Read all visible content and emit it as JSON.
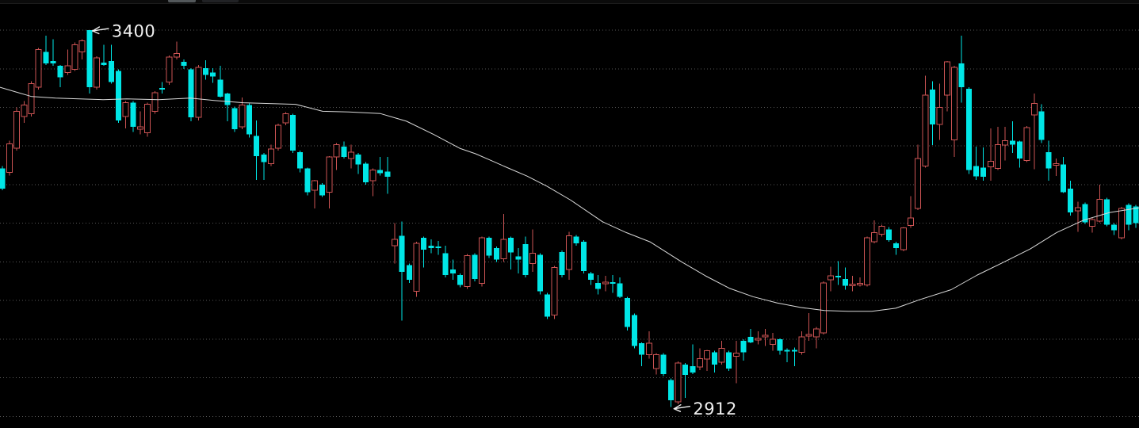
{
  "window": {
    "background": "#000000",
    "top_strip": {
      "background": "#0b0b0b",
      "border_color": "#1c1c1c",
      "fragments": [
        {
          "name": "window-fragment-1",
          "x": 212,
          "width": 35,
          "color": "#53585b"
        },
        {
          "name": "window-fragment-2",
          "x": 255,
          "width": 46,
          "color": "#212225"
        }
      ]
    }
  },
  "chart_data": {
    "type": "candlestick",
    "title": "",
    "xlabel": "",
    "ylabel": "",
    "legend": "none",
    "grid": "dotted-horizontal",
    "y_axis": {
      "visible": false,
      "ylim": [
        2885,
        3439
      ]
    },
    "x_axis": {
      "visible": false,
      "candle_count": 157
    },
    "gridline_values": [
      3400,
      3350,
      3300,
      3250,
      3200,
      3150,
      3100,
      3050,
      3000,
      2950,
      2900
    ],
    "style": {
      "up_color": "#cd5454",
      "up_body": "hollow",
      "down_color": "#00e6e6",
      "down_body": "solid",
      "ma_color": "#d9d9d9",
      "grid_color": "#666666",
      "annotation_color": "#f0f0f0",
      "background": "#000000"
    },
    "annotations": [
      {
        "label": "3400",
        "price": 3400,
        "candle_index": 12,
        "side": "high"
      },
      {
        "label": "2912",
        "price": 2912,
        "candle_index": 92,
        "side": "low"
      }
    ],
    "overlays": [
      {
        "name": "moving-average",
        "color": "#d9d9d9",
        "points_x_price": [
          [
            0,
            3326
          ],
          [
            20,
            3320
          ],
          [
            40,
            3314
          ],
          [
            70,
            3312
          ],
          [
            100,
            3311
          ],
          [
            130,
            3310
          ],
          [
            160,
            3311
          ],
          [
            200,
            3310
          ],
          [
            240,
            3312
          ],
          [
            270,
            3309
          ],
          [
            307,
            3306
          ],
          [
            340,
            3305
          ],
          [
            373,
            3304
          ],
          [
            407,
            3295
          ],
          [
            440,
            3294
          ],
          [
            480,
            3292
          ],
          [
            513,
            3282
          ],
          [
            547,
            3265
          ],
          [
            580,
            3247
          ],
          [
            600,
            3240
          ],
          [
            620,
            3231
          ],
          [
            640,
            3222
          ],
          [
            665,
            3211
          ],
          [
            690,
            3198
          ],
          [
            720,
            3180
          ],
          [
            760,
            3152
          ],
          [
            790,
            3138
          ],
          [
            820,
            3126
          ],
          [
            860,
            3100
          ],
          [
            890,
            3082
          ],
          [
            920,
            3066
          ],
          [
            950,
            3055
          ],
          [
            980,
            3047
          ],
          [
            1010,
            3041
          ],
          [
            1040,
            3037
          ],
          [
            1070,
            3036
          ],
          [
            1100,
            3036
          ],
          [
            1130,
            3040
          ],
          [
            1160,
            3051
          ],
          [
            1200,
            3064
          ],
          [
            1233,
            3083
          ],
          [
            1267,
            3100
          ],
          [
            1300,
            3117
          ],
          [
            1333,
            3138
          ],
          [
            1367,
            3154
          ],
          [
            1400,
            3164
          ],
          [
            1437,
            3170
          ]
        ]
      }
    ],
    "candles_ohlc": [
      [
        3221,
        3224,
        3193,
        3195
      ],
      [
        3216,
        3257,
        3212,
        3253
      ],
      [
        3247,
        3300,
        3244,
        3295
      ],
      [
        3288,
        3308,
        3280,
        3303
      ],
      [
        3292,
        3334,
        3288,
        3331
      ],
      [
        3326,
        3377,
        3323,
        3375
      ],
      [
        3372,
        3393,
        3355,
        3357
      ],
      [
        3360,
        3388,
        3354,
        3357
      ],
      [
        3354,
        3355,
        3326,
        3339
      ],
      [
        3345,
        3375,
        3342,
        3354
      ],
      [
        3349,
        3384,
        3347,
        3381
      ],
      [
        3372,
        3388,
        3362,
        3386
      ],
      [
        3400,
        3400,
        3318,
        3326
      ],
      [
        3326,
        3366,
        3323,
        3364
      ],
      [
        3358,
        3381,
        3354,
        3355
      ],
      [
        3360,
        3381,
        3331,
        3333
      ],
      [
        3347,
        3349,
        3280,
        3283
      ],
      [
        3288,
        3308,
        3273,
        3306
      ],
      [
        3306,
        3308,
        3268,
        3275
      ],
      [
        3272,
        3295,
        3265,
        3275
      ],
      [
        3267,
        3306,
        3262,
        3304
      ],
      [
        3295,
        3321,
        3292,
        3319
      ],
      [
        3325,
        3333,
        3318,
        3323
      ],
      [
        3333,
        3367,
        3329,
        3365
      ],
      [
        3365,
        3385,
        3362,
        3370
      ],
      [
        3359,
        3362,
        3350,
        3354
      ],
      [
        3349,
        3351,
        3282,
        3287
      ],
      [
        3287,
        3355,
        3283,
        3352
      ],
      [
        3351,
        3361,
        3336,
        3342
      ],
      [
        3345,
        3351,
        3332,
        3340
      ],
      [
        3336,
        3354,
        3313,
        3314
      ],
      [
        3318,
        3319,
        3282,
        3303
      ],
      [
        3299,
        3301,
        3268,
        3272
      ],
      [
        3275,
        3313,
        3272,
        3303
      ],
      [
        3303,
        3305,
        3261,
        3265
      ],
      [
        3263,
        3283,
        3206,
        3237
      ],
      [
        3239,
        3241,
        3206,
        3229
      ],
      [
        3227,
        3252,
        3224,
        3246
      ],
      [
        3247,
        3279,
        3244,
        3277
      ],
      [
        3280,
        3294,
        3277,
        3292
      ],
      [
        3290,
        3292,
        3241,
        3244
      ],
      [
        3242,
        3244,
        3216,
        3221
      ],
      [
        3221,
        3222,
        3186,
        3190
      ],
      [
        3193,
        3206,
        3169,
        3205
      ],
      [
        3200,
        3202,
        3184,
        3186
      ],
      [
        3190,
        3237,
        3169,
        3236
      ],
      [
        3236,
        3254,
        3219,
        3252
      ],
      [
        3249,
        3256,
        3234,
        3236
      ],
      [
        3234,
        3252,
        3221,
        3242
      ],
      [
        3239,
        3241,
        3214,
        3226
      ],
      [
        3227,
        3229,
        3200,
        3203
      ],
      [
        3205,
        3221,
        3185,
        3219
      ],
      [
        3219,
        3236,
        3212,
        3215
      ],
      [
        3217,
        3236,
        3188,
        3210
      ],
      [
        3121,
        3150,
        3098,
        3129
      ],
      [
        3134,
        3152,
        3024,
        3087
      ],
      [
        3096,
        3098,
        3073,
        3077
      ],
      [
        3062,
        3126,
        3055,
        3124
      ],
      [
        3131,
        3133,
        3093,
        3116
      ],
      [
        3121,
        3129,
        3111,
        3118
      ],
      [
        3120,
        3127,
        3109,
        3118
      ],
      [
        3111,
        3121,
        3080,
        3083
      ],
      [
        3090,
        3103,
        3077,
        3085
      ],
      [
        3083,
        3085,
        3067,
        3070
      ],
      [
        3068,
        3110,
        3065,
        3108
      ],
      [
        3109,
        3111,
        3075,
        3078
      ],
      [
        3072,
        3133,
        3068,
        3131
      ],
      [
        3131,
        3133,
        3105,
        3108
      ],
      [
        3118,
        3120,
        3100,
        3103
      ],
      [
        3104,
        3162,
        3100,
        3129
      ],
      [
        3131,
        3133,
        3090,
        3112
      ],
      [
        3107,
        3118,
        3085,
        3103
      ],
      [
        3123,
        3133,
        3080,
        3083
      ],
      [
        3098,
        3142,
        3087,
        3111
      ],
      [
        3109,
        3111,
        3058,
        3062
      ],
      [
        3058,
        3060,
        3026,
        3029
      ],
      [
        3031,
        3095,
        3026,
        3093
      ],
      [
        3113,
        3115,
        3080,
        3083
      ],
      [
        3090,
        3139,
        3077,
        3134
      ],
      [
        3133,
        3135,
        3121,
        3124
      ],
      [
        3126,
        3128,
        3085,
        3088
      ],
      [
        3085,
        3087,
        3070,
        3077
      ],
      [
        3073,
        3083,
        3058,
        3065
      ],
      [
        3072,
        3082,
        3062,
        3074
      ],
      [
        3074,
        3083,
        3060,
        3072
      ],
      [
        3072,
        3080,
        3053,
        3055
      ],
      [
        3053,
        3055,
        3011,
        3016
      ],
      [
        3031,
        3033,
        2988,
        2991
      ],
      [
        2995,
        2996,
        2965,
        2980
      ],
      [
        2980,
        3010,
        2975,
        2995
      ],
      [
        2962,
        2982,
        2954,
        2980
      ],
      [
        2980,
        2982,
        2952,
        2955
      ],
      [
        2947,
        2949,
        2912,
        2921
      ],
      [
        2919,
        2971,
        2916,
        2969
      ],
      [
        2967,
        2969,
        2924,
        2954
      ],
      [
        2965,
        2993,
        2955,
        2957
      ],
      [
        2964,
        2988,
        2960,
        2975
      ],
      [
        2974,
        2986,
        2959,
        2985
      ],
      [
        2983,
        2985,
        2957,
        2967
      ],
      [
        2970,
        2998,
        2967,
        2988
      ],
      [
        2983,
        2985,
        2959,
        2962
      ],
      [
        2978,
        2998,
        2943,
        2982
      ],
      [
        2998,
        3000,
        2972,
        2983
      ],
      [
        3003,
        3013,
        2995,
        2996
      ],
      [
        2999,
        3010,
        2993,
        3001
      ],
      [
        3003,
        3013,
        2991,
        3005
      ],
      [
        2993,
        3008,
        2985,
        3000
      ],
      [
        3000,
        3001,
        2980,
        2985
      ],
      [
        2986,
        2988,
        2970,
        2984
      ],
      [
        2986,
        2989,
        2965,
        2984
      ],
      [
        2983,
        3010,
        2980,
        3003
      ],
      [
        3004,
        3034,
        2998,
        3006
      ],
      [
        3003,
        3016,
        2988,
        3013
      ],
      [
        3008,
        3075,
        3006,
        3073
      ],
      [
        3077,
        3094,
        3062,
        3082
      ],
      [
        3082,
        3101,
        3070,
        3080
      ],
      [
        3078,
        3093,
        3064,
        3069
      ],
      [
        3069,
        3082,
        3062,
        3071
      ],
      [
        3070,
        3080,
        3068,
        3072
      ],
      [
        3070,
        3133,
        3068,
        3131
      ],
      [
        3126,
        3154,
        3124,
        3138
      ],
      [
        3136,
        3148,
        3133,
        3146
      ],
      [
        3142,
        3145,
        3126,
        3128
      ],
      [
        3124,
        3126,
        3109,
        3118
      ],
      [
        3116,
        3145,
        3114,
        3144
      ],
      [
        3147,
        3185,
        3144,
        3157
      ],
      [
        3169,
        3252,
        3167,
        3234
      ],
      [
        3224,
        3341,
        3222,
        3316
      ],
      [
        3323,
        3334,
        3251,
        3278
      ],
      [
        3278,
        3331,
        3258,
        3300
      ],
      [
        3316,
        3360,
        3295,
        3359
      ],
      [
        3258,
        3354,
        3236,
        3352
      ],
      [
        3357,
        3393,
        3306,
        3326
      ],
      [
        3324,
        3326,
        3214,
        3219
      ],
      [
        3224,
        3249,
        3206,
        3211
      ],
      [
        3222,
        3248,
        3205,
        3210
      ],
      [
        3223,
        3273,
        3205,
        3230
      ],
      [
        3221,
        3275,
        3219,
        3252
      ],
      [
        3251,
        3275,
        3231,
        3257
      ],
      [
        3257,
        3282,
        3241,
        3252
      ],
      [
        3256,
        3257,
        3222,
        3234
      ],
      [
        3231,
        3276,
        3229,
        3274
      ],
      [
        3290,
        3318,
        3220,
        3305
      ],
      [
        3295,
        3304,
        3254,
        3258
      ],
      [
        3242,
        3257,
        3205,
        3221
      ],
      [
        3225,
        3234,
        3211,
        3227
      ],
      [
        3226,
        3236,
        3189,
        3190
      ],
      [
        3195,
        3205,
        3160,
        3164
      ],
      [
        3166,
        3178,
        3139,
        3170
      ],
      [
        3175,
        3177,
        3149,
        3151
      ],
      [
        3146,
        3158,
        3138,
        3155
      ],
      [
        3153,
        3200,
        3151,
        3181
      ],
      [
        3181,
        3183,
        3146,
        3148
      ],
      [
        3148,
        3150,
        3135,
        3141
      ],
      [
        3131,
        3171,
        3129,
        3169
      ],
      [
        3174,
        3176,
        3141,
        3148
      ],
      [
        3172,
        3174,
        3144,
        3150
      ]
    ]
  }
}
